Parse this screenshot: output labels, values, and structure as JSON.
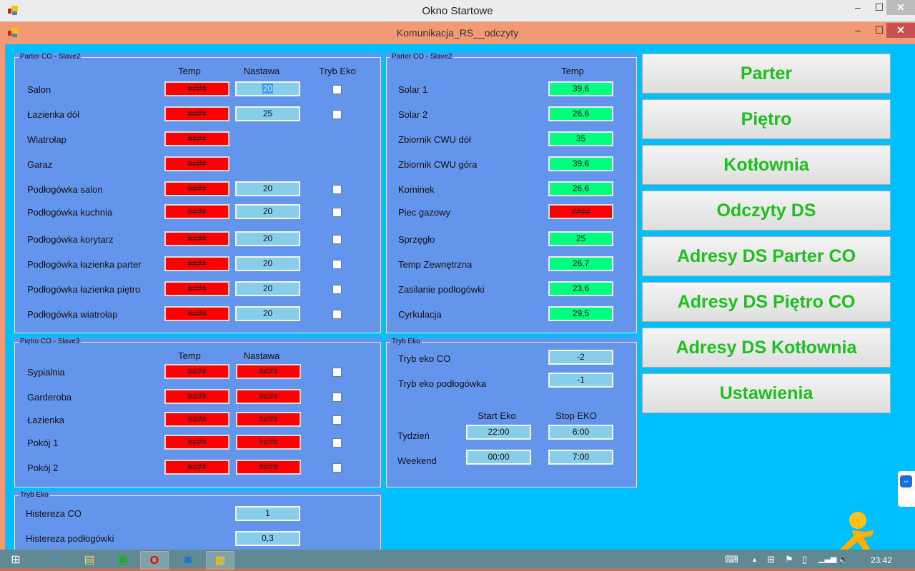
{
  "window": {
    "title": "Okno Startowe",
    "child_title": "Komunikacja_RS__odczyty",
    "minimize": "‒",
    "maximize": "☐",
    "close": "✕"
  },
  "parter": {
    "legend": "Parter CO - Slave2",
    "headers": {
      "temp": "Temp",
      "nastawa": "Nastawa",
      "eko": "Tryb Eko"
    },
    "rows": [
      {
        "label": "Salon",
        "temp": "####",
        "nastawa": "20",
        "eko": true
      },
      {
        "label": "Łazienka dół",
        "temp": "####",
        "nastawa": "25",
        "eko": true
      },
      {
        "label": "Wiatrołap",
        "temp": "####",
        "nastawa": null,
        "eko": false
      },
      {
        "label": "Garaz",
        "temp": "####",
        "nastawa": null,
        "eko": false
      },
      {
        "label": "Podłogówka salon",
        "temp": "####",
        "nastawa": "20",
        "eko": true
      },
      {
        "label": "Podłogówka kuchnia",
        "temp": "####",
        "nastawa": "20",
        "eko": true
      },
      {
        "label": "Podłogówka korytarz",
        "temp": "####",
        "nastawa": "20",
        "eko": true
      },
      {
        "label": "Podłogówka łazienka parter",
        "temp": "####",
        "nastawa": "20",
        "eko": true
      },
      {
        "label": "Podłogówka łazienka piętro",
        "temp": "####",
        "nastawa": "20",
        "eko": true
      },
      {
        "label": "Podłogówka wiatrołap",
        "temp": "####",
        "nastawa": "20",
        "eko": true
      }
    ]
  },
  "kotlownia": {
    "legend": "Parter CO - Slave2",
    "header": "Temp",
    "rows": [
      {
        "label": "Solar 1",
        "temp": "39,6",
        "status": "ok"
      },
      {
        "label": "Solar 2",
        "temp": "26,6",
        "status": "ok"
      },
      {
        "label": "Zbiornik CWU dół",
        "temp": "35",
        "status": "ok"
      },
      {
        "label": "Zbiornik CWU góra",
        "temp": "39,6",
        "status": "ok"
      },
      {
        "label": "Kominek",
        "temp": "26,6",
        "status": "ok"
      },
      {
        "label": "Piec gazowy",
        "temp": "####",
        "status": "error"
      },
      {
        "label": "Sprzęgło",
        "temp": "25",
        "status": "ok"
      },
      {
        "label": "Temp Zewnętrzna",
        "temp": "26,7",
        "status": "ok"
      },
      {
        "label": "Zasilanie podłogówki",
        "temp": "23,6",
        "status": "ok"
      },
      {
        "label": "Cyrkulacja",
        "temp": "29,5",
        "status": "ok"
      }
    ]
  },
  "pietro": {
    "legend": "Piętro CO - Slave3",
    "headers": {
      "temp": "Temp",
      "nastawa": "Nastawa"
    },
    "rows": [
      {
        "label": "Sypialnia",
        "temp": "####",
        "nastawa": "####"
      },
      {
        "label": "Garderoba",
        "temp": "####",
        "nastawa": "####"
      },
      {
        "label": "Łazienka",
        "temp": "####",
        "nastawa": "####"
      },
      {
        "label": "Pokój 1",
        "temp": "####",
        "nastawa": "####"
      },
      {
        "label": "Pokój 2",
        "temp": "####",
        "nastawa": "####"
      }
    ]
  },
  "eko_right": {
    "legend": "Tryb Eko",
    "eko_co_label": "Tryb eko CO",
    "eko_co": "-2",
    "eko_floor_label": "Tryb eko podłogówka",
    "eko_floor": "-1",
    "start_header": "Start Eko",
    "stop_header": "Stop EKO",
    "week_label": "Tydzień",
    "week_start": "22:00",
    "week_stop": "6:00",
    "weekend_label": "Weekend",
    "weekend_start": "00:00",
    "weekend_stop": "7:00"
  },
  "eko_left": {
    "legend": "Tryb Eko",
    "hist_co_label": "Histereza CO",
    "hist_co": "1",
    "hist_floor_label": "Histereza podłogówki",
    "hist_floor": "0,3"
  },
  "nav": [
    "Parter",
    "Piętro",
    "Kotłownia",
    "Odczyty DS",
    "Adresy DS Parter CO",
    "Adresy DS Piętro CO",
    "Adresy DS Kotłownia",
    "Ustawienia"
  ],
  "colors": {
    "error": "#ff0000",
    "ok": "#00ff7f",
    "setpoint": "#87ceeb",
    "panel": "#6495ed",
    "background": "#00bfff",
    "nav_text": "#1fbf1f"
  },
  "taskbar": {
    "clock": "23:42",
    "icons": [
      "start-icon",
      "internet-explorer-icon",
      "file-explorer-icon",
      "store-icon",
      "opera-icon",
      "teamviewer-icon",
      "app-icon"
    ],
    "tray": [
      "keyboard-icon",
      "show-hidden-icon",
      "windows-icon",
      "flag-icon",
      "battery-icon",
      "signal-icon",
      "volume-icon"
    ]
  }
}
